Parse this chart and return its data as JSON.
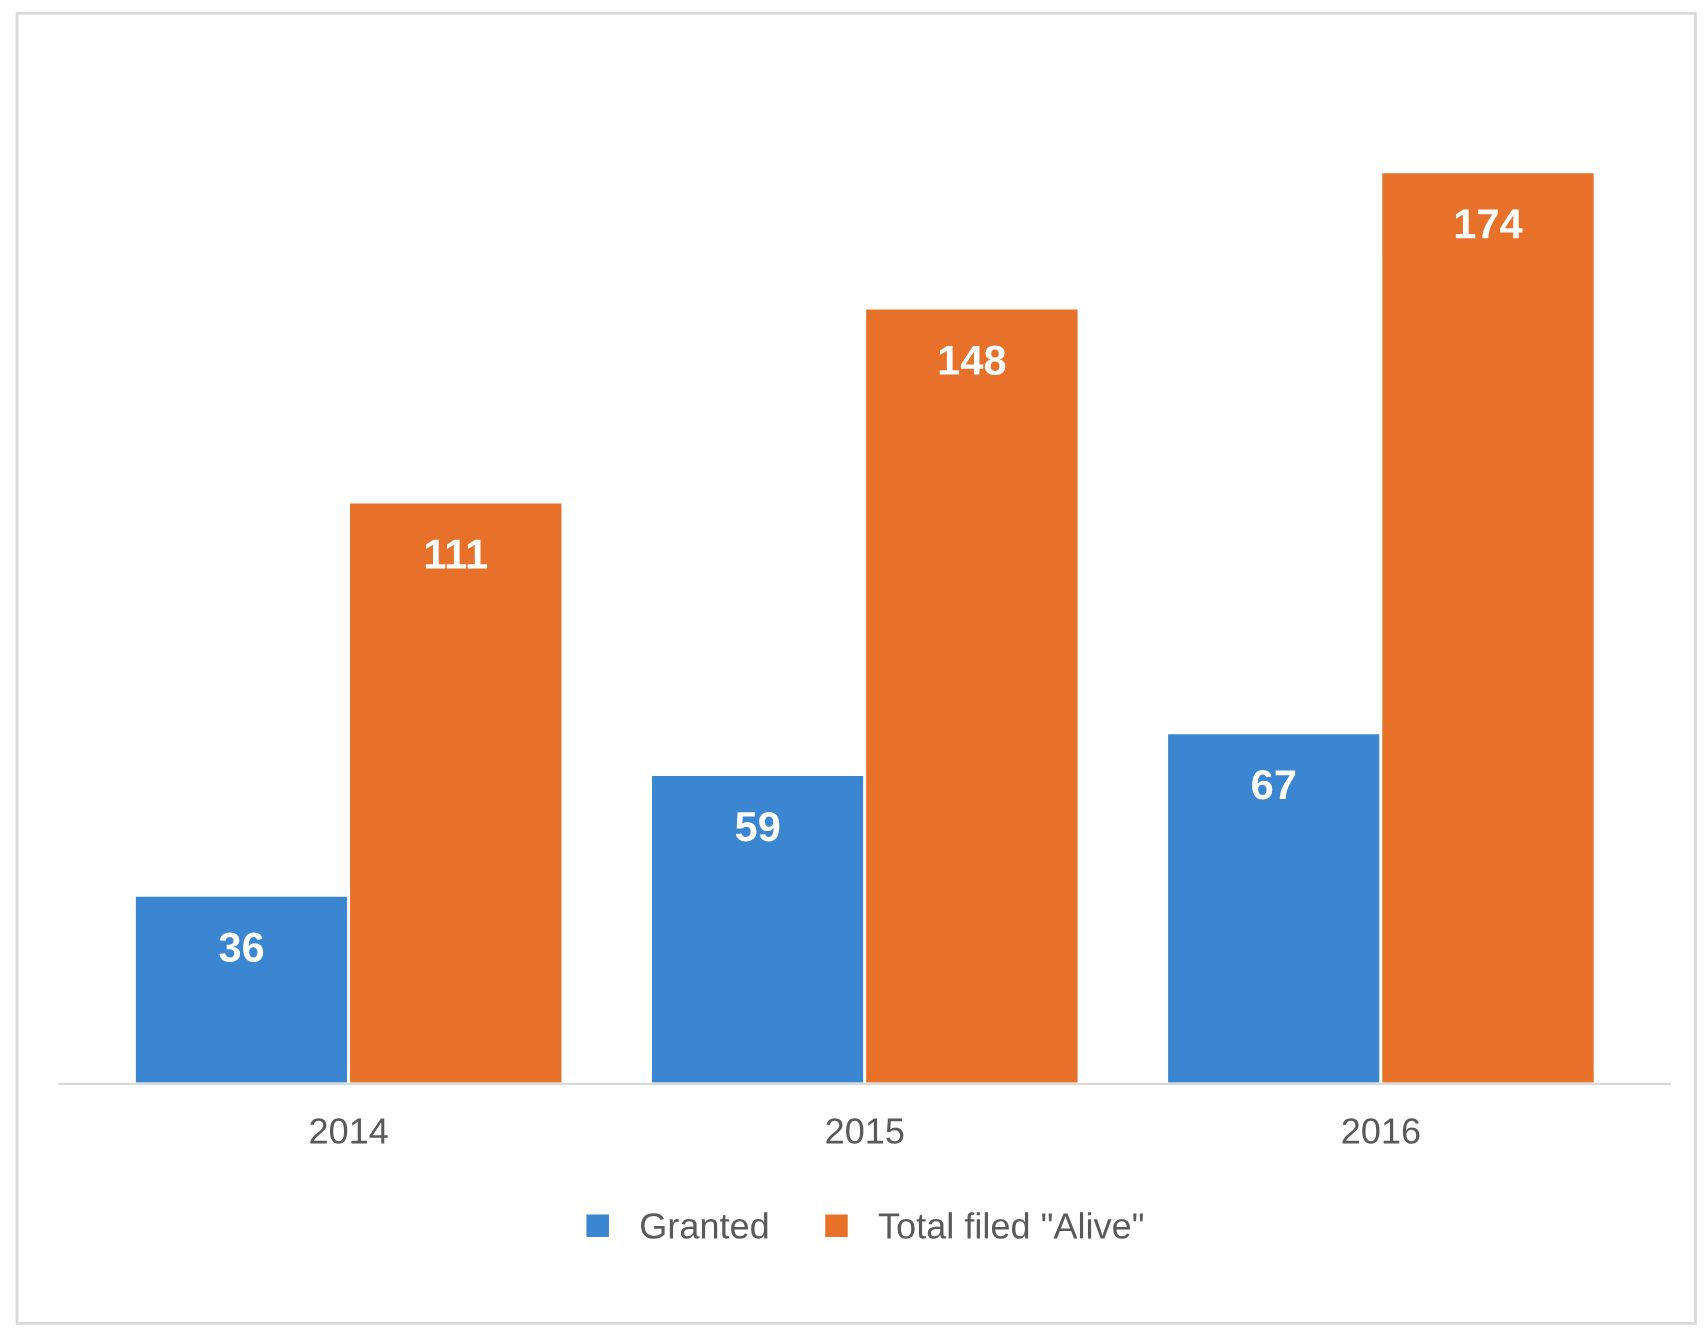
{
  "chart_data": {
    "type": "bar",
    "categories": [
      "2014",
      "2015",
      "2016"
    ],
    "series": [
      {
        "name": "Granted",
        "color": "#3b86d0",
        "values": [
          36,
          59,
          67
        ]
      },
      {
        "name": "Total filed \"Alive\"",
        "color": "#e8712a",
        "values": [
          111,
          148,
          174
        ]
      }
    ],
    "data_labels": true,
    "grid": false,
    "legend": "bottom",
    "tick_labels": "x"
  }
}
